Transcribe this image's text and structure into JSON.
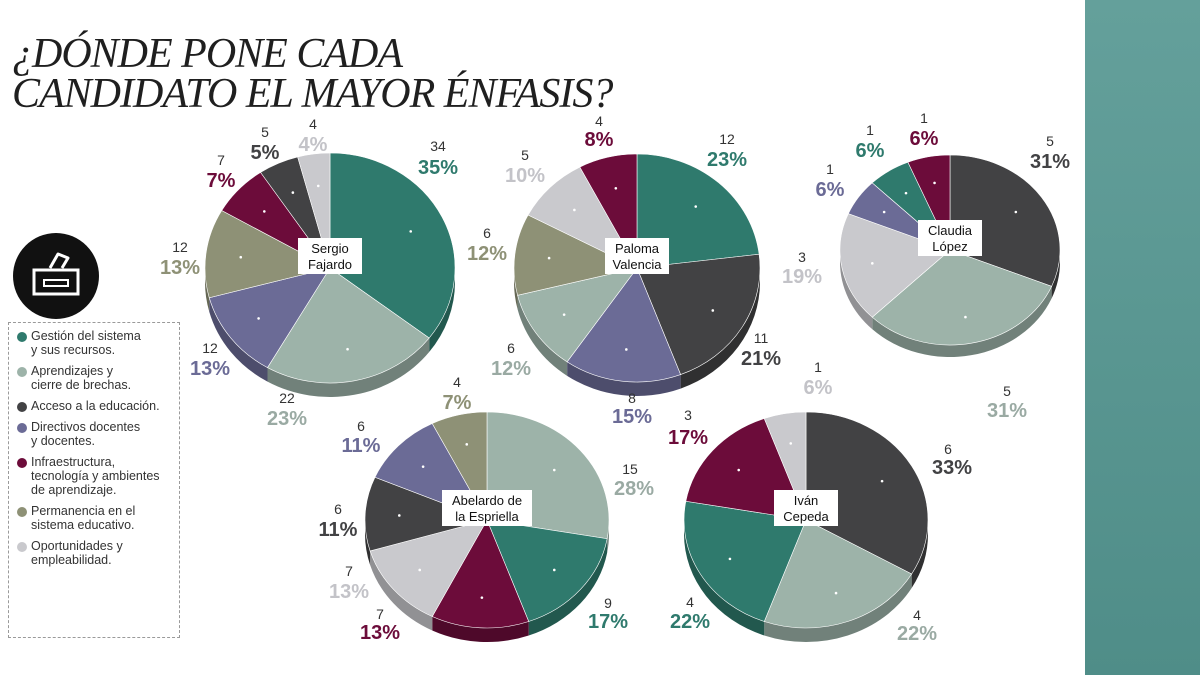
{
  "title": {
    "line1": "¿DÓNDE PONE CADA",
    "line2": "CANDIDATO EL MAYOR ÉNFASIS?"
  },
  "legend": [
    {
      "key": "gestion",
      "label": "Gestión del sistema\ny sus recursos.",
      "color": "#2f7a6d"
    },
    {
      "key": "aprendizajes",
      "label": "Aprendizajes y\ncierre de brechas.",
      "color": "#9db3a9"
    },
    {
      "key": "acceso",
      "label": "Acceso a la educación.",
      "color": "#424244"
    },
    {
      "key": "directivos",
      "label": "Directivos docentes\ny docentes.",
      "color": "#6b6b96"
    },
    {
      "key": "infraestructura",
      "label": "Infraestructura,\ntecnología y ambientes\nde aprendizaje.",
      "color": "#6c0c3a"
    },
    {
      "key": "permanencia",
      "label": "Permanencia en el\nsistema educativo.",
      "color": "#8e9176"
    },
    {
      "key": "oportunidades",
      "label": "Oportunidades y\nempleabilidad.",
      "color": "#c9c9cd"
    }
  ],
  "chart_data": [
    {
      "type": "pie",
      "candidate": [
        "Sergio",
        "Fajardo"
      ],
      "slices": [
        {
          "category": "gestion",
          "count": "34",
          "percent": "35%"
        },
        {
          "category": "aprendizajes",
          "count": "22",
          "percent": "23%"
        },
        {
          "category": "directivos",
          "count": "12",
          "percent": "13%"
        },
        {
          "category": "permanencia",
          "count": "12",
          "percent": "13%"
        },
        {
          "category": "infraestructura",
          "count": "7",
          "percent": "7%"
        },
        {
          "category": "acceso",
          "count": "5",
          "percent": "5%"
        },
        {
          "category": "oportunidades",
          "count": "4",
          "percent": "4%"
        }
      ]
    },
    {
      "type": "pie",
      "candidate": [
        "Paloma",
        "Valencia"
      ],
      "slices": [
        {
          "category": "gestion",
          "count": "12",
          "percent": "23%"
        },
        {
          "category": "acceso",
          "count": "11",
          "percent": "21%"
        },
        {
          "category": "directivos",
          "count": "8",
          "percent": "15%"
        },
        {
          "category": "aprendizajes",
          "count": "6",
          "percent": "12%"
        },
        {
          "category": "permanencia",
          "count": "6",
          "percent": "12%"
        },
        {
          "category": "oportunidades",
          "count": "5",
          "percent": "10%"
        },
        {
          "category": "infraestructura",
          "count": "4",
          "percent": "8%"
        }
      ]
    },
    {
      "type": "pie",
      "candidate": [
        "Claudia",
        "López"
      ],
      "slices": [
        {
          "category": "acceso",
          "count": "5",
          "percent": "31%"
        },
        {
          "category": "aprendizajes",
          "count": "5",
          "percent": "31%"
        },
        {
          "category": "oportunidades",
          "count": "3",
          "percent": "19%"
        },
        {
          "category": "directivos",
          "count": "1",
          "percent": "6%"
        },
        {
          "category": "gestion",
          "count": "1",
          "percent": "6%"
        },
        {
          "category": "infraestructura",
          "count": "1",
          "percent": "6%"
        }
      ]
    },
    {
      "type": "pie",
      "candidate": [
        "Abelardo de",
        "la Espriella"
      ],
      "slices": [
        {
          "category": "aprendizajes",
          "count": "15",
          "percent": "28%"
        },
        {
          "category": "gestion",
          "count": "9",
          "percent": "17%"
        },
        {
          "category": "infraestructura",
          "count": "7",
          "percent": "13%"
        },
        {
          "category": "oportunidades",
          "count": "7",
          "percent": "13%"
        },
        {
          "category": "acceso",
          "count": "6",
          "percent": "11%"
        },
        {
          "category": "directivos",
          "count": "6",
          "percent": "11%"
        },
        {
          "category": "permanencia",
          "count": "4",
          "percent": "7%"
        }
      ]
    },
    {
      "type": "pie",
      "candidate": [
        "Iván",
        "Cepeda"
      ],
      "slices": [
        {
          "category": "acceso",
          "count": "6",
          "percent": "33%"
        },
        {
          "category": "aprendizajes",
          "count": "4",
          "percent": "22%"
        },
        {
          "category": "gestion",
          "count": "4",
          "percent": "22%"
        },
        {
          "category": "infraestructura",
          "count": "3",
          "percent": "17%"
        },
        {
          "category": "oportunidades",
          "count": "1",
          "percent": "6%"
        }
      ]
    }
  ]
}
